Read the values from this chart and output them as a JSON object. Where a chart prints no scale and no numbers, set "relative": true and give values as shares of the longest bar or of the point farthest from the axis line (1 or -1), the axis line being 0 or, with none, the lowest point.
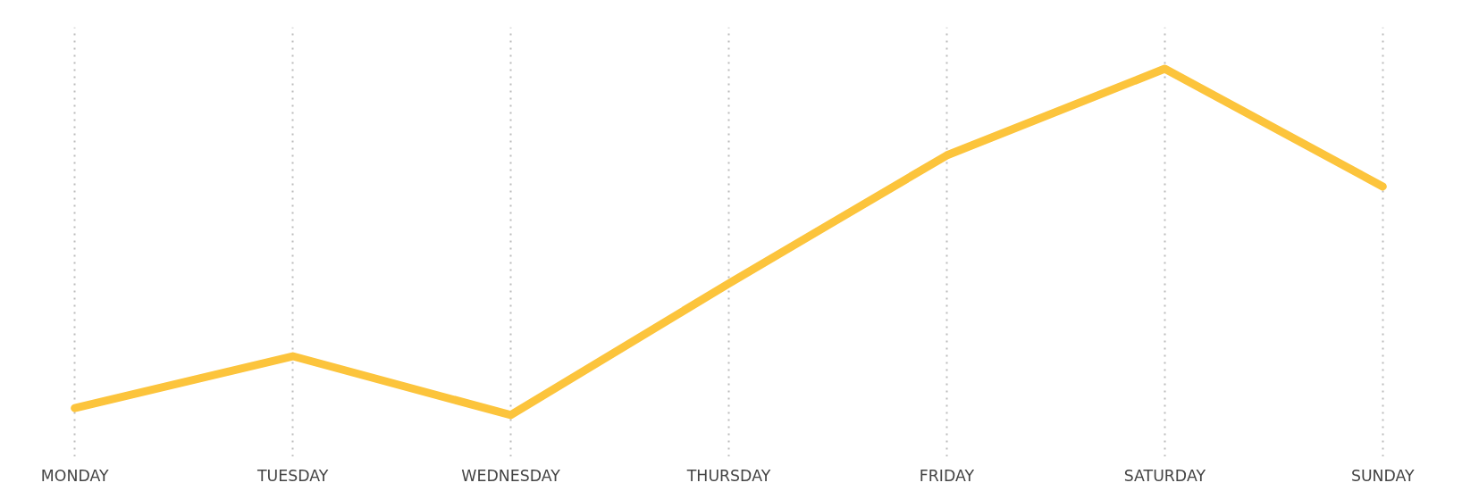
{
  "chart_data": {
    "type": "line",
    "relative": true,
    "categories": [
      "MONDAY",
      "TUESDAY",
      "WEDNESDAY",
      "THURSDAY",
      "FRIDAY",
      "SATURDAY",
      "SUNDAY"
    ],
    "series": [
      {
        "color": "#fcc43c",
        "values": [
          0.02,
          0.17,
          0,
          0.38,
          0.75,
          1,
          0.66
        ]
      }
    ],
    "grid": "x",
    "marker": "none",
    "line_style": "solid"
  }
}
